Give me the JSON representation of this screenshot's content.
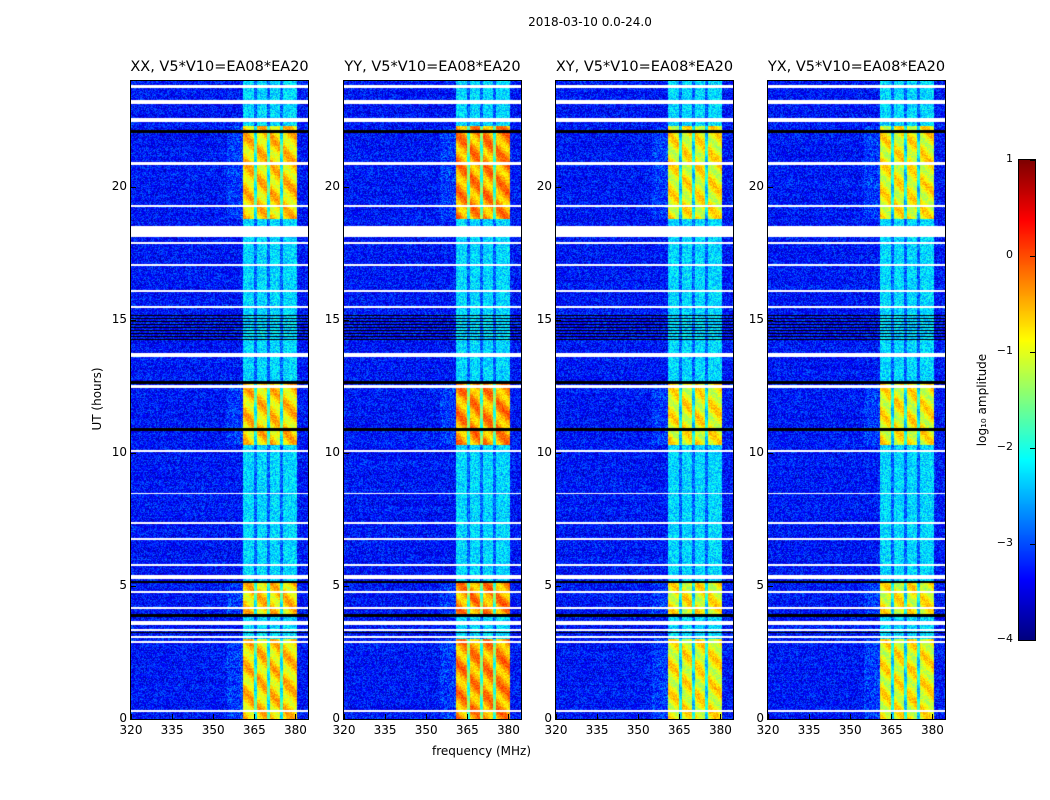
{
  "title": "2018-03-10 0.0-24.0",
  "chart_data": {
    "type": "heatmap",
    "title": "2018-03-10 0.0-24.0",
    "xlabel": "frequency (MHz)",
    "ylabel": "UT (hours)",
    "xlim": [
      320,
      384.6
    ],
    "ylim": [
      0,
      24
    ],
    "xticks": [
      320,
      335,
      350,
      365,
      380
    ],
    "yticks": [
      0,
      5,
      10,
      15,
      20
    ],
    "panels": [
      {
        "title": "XX, V5*V10=EA08*EA20",
        "band_level": -0.7
      },
      {
        "title": "YY, V5*V10=EA08*EA20",
        "band_level": -0.4
      },
      {
        "title": "XY, V5*V10=EA08*EA20",
        "band_level": -0.9
      },
      {
        "title": "YX, V5*V10=EA08*EA20",
        "band_level": -0.9
      }
    ],
    "band_mhz": [
      361,
      380.5
    ],
    "subband_gaps_mhz": [
      365.5,
      370.3,
      375
    ],
    "background_level": -3.3,
    "strong_rfi_hours": [
      [
        0,
        3.0
      ],
      [
        3.9,
        5.2
      ],
      [
        10.3,
        12.7
      ],
      [
        18.8,
        22.3
      ]
    ],
    "flagged_hours_white": [
      [
        23.75,
        23.85
      ],
      [
        23.15,
        23.3
      ],
      [
        22.45,
        22.6
      ],
      [
        20.85,
        20.95
      ],
      [
        19.25,
        19.35
      ],
      [
        18.15,
        18.55
      ],
      [
        17.85,
        17.95
      ],
      [
        17.05,
        17.12
      ],
      [
        16.05,
        16.12
      ],
      [
        15.45,
        15.52
      ],
      [
        13.6,
        13.75
      ],
      [
        12.45,
        12.55
      ],
      [
        10.05,
        10.12
      ],
      [
        8.45,
        8.52
      ],
      [
        7.35,
        7.42
      ],
      [
        6.75,
        6.82
      ],
      [
        5.75,
        5.82
      ],
      [
        5.25,
        5.4
      ],
      [
        4.75,
        4.82
      ],
      [
        4.15,
        4.22
      ],
      [
        3.55,
        3.68
      ],
      [
        3.3,
        3.38
      ],
      [
        3.05,
        3.12
      ],
      [
        2.85,
        2.92
      ],
      [
        0.28,
        0.35
      ]
    ],
    "flagged_hours_black": [
      [
        22.05,
        22.15
      ],
      [
        12.62,
        12.72
      ],
      [
        10.85,
        10.95
      ],
      [
        5.1,
        5.2
      ],
      [
        3.85,
        3.95
      ],
      [
        3.22,
        3.28
      ]
    ],
    "striped_hours": [
      14.2,
      15.2
    ],
    "colorbar": {
      "label": "log₁₀ amplitude",
      "range": [
        -4,
        1
      ],
      "ticks": [
        1,
        0,
        -1,
        -2,
        -3,
        -4
      ],
      "tick_labels": [
        "1",
        "0",
        "−1",
        "−2",
        "−3",
        "−4"
      ],
      "colormap": "jet"
    }
  }
}
